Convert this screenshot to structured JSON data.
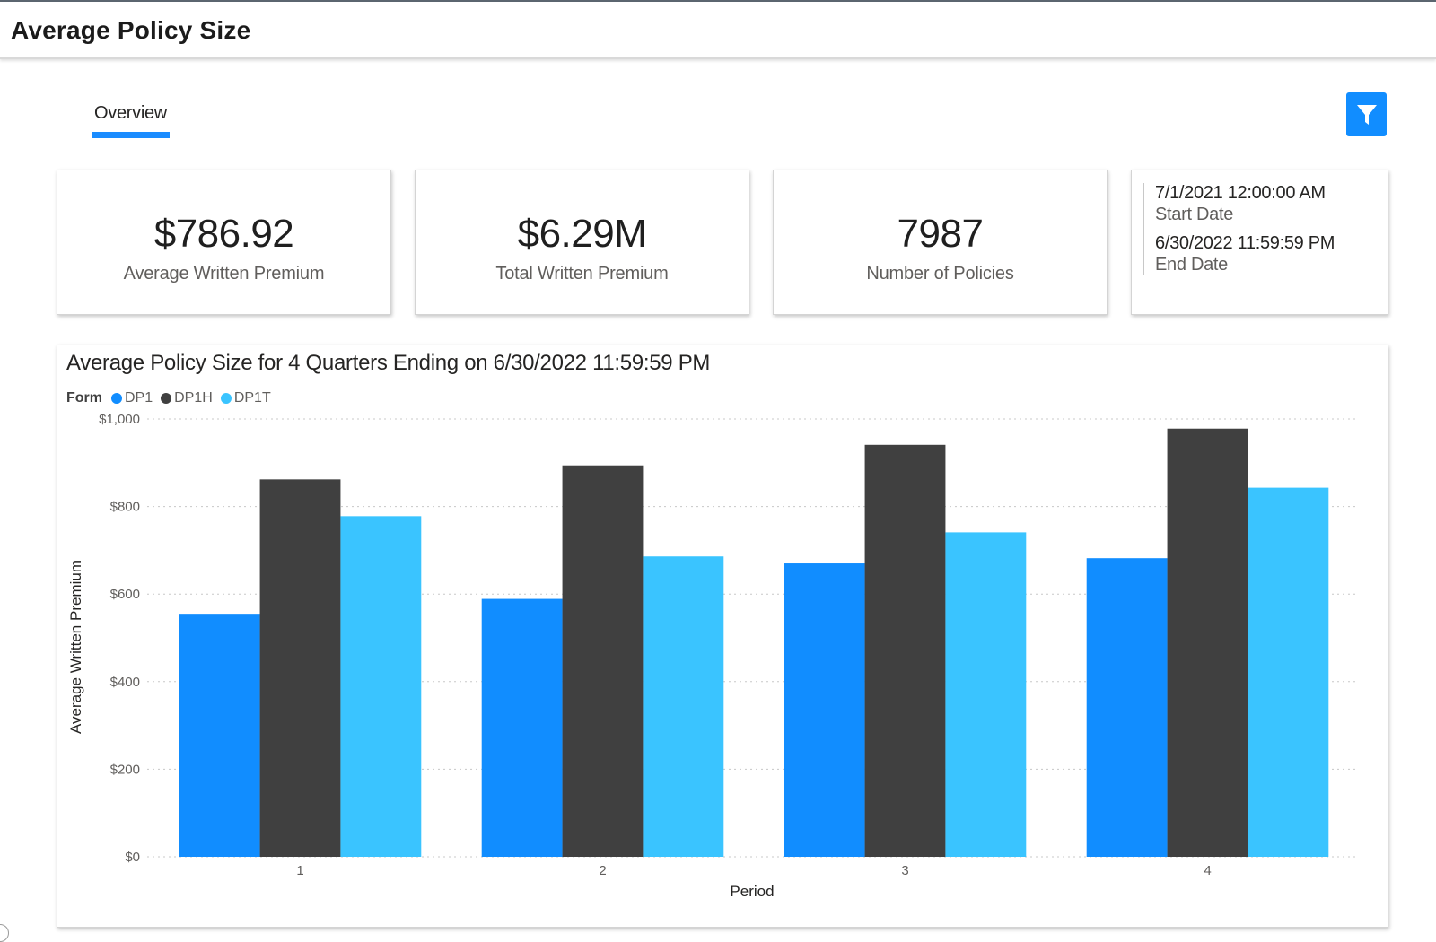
{
  "header": {
    "title": "Average Policy Size"
  },
  "tabs": [
    {
      "label": "Overview",
      "active": true
    }
  ],
  "filter_button": {
    "icon": "funnel-icon",
    "color": "#118DFF"
  },
  "kpis": [
    {
      "value": "$786.92",
      "label": "Average Written Premium"
    },
    {
      "value": "$6.29M",
      "label": "Total Written Premium"
    },
    {
      "value": "7987",
      "label": "Number of Policies"
    }
  ],
  "dates": {
    "start_value": "7/1/2021 12:00:00 AM",
    "start_label": "Start Date",
    "end_value": "6/30/2022 11:59:59 PM",
    "end_label": "End Date"
  },
  "chart_data": {
    "type": "bar",
    "title": "Average Policy Size for 4 Quarters Ending on 6/30/2022 11:59:59 PM",
    "legend_title": "Form",
    "legend_position": "top-left",
    "xlabel": "Period",
    "ylabel": "Average Written Premium",
    "categories": [
      "1",
      "2",
      "3",
      "4"
    ],
    "ylim": [
      0,
      1000
    ],
    "yticks": [
      "$0",
      "$200",
      "$400",
      "$600",
      "$800",
      "$1,000"
    ],
    "grid": true,
    "series": [
      {
        "name": "DP1",
        "color": "#118DFF",
        "values": [
          555,
          589,
          670,
          682
        ]
      },
      {
        "name": "DP1H",
        "color": "#404040",
        "values": [
          862,
          894,
          941,
          978
        ]
      },
      {
        "name": "DP1T",
        "color": "#3AC4FF",
        "values": [
          778,
          686,
          741,
          843
        ]
      }
    ]
  }
}
